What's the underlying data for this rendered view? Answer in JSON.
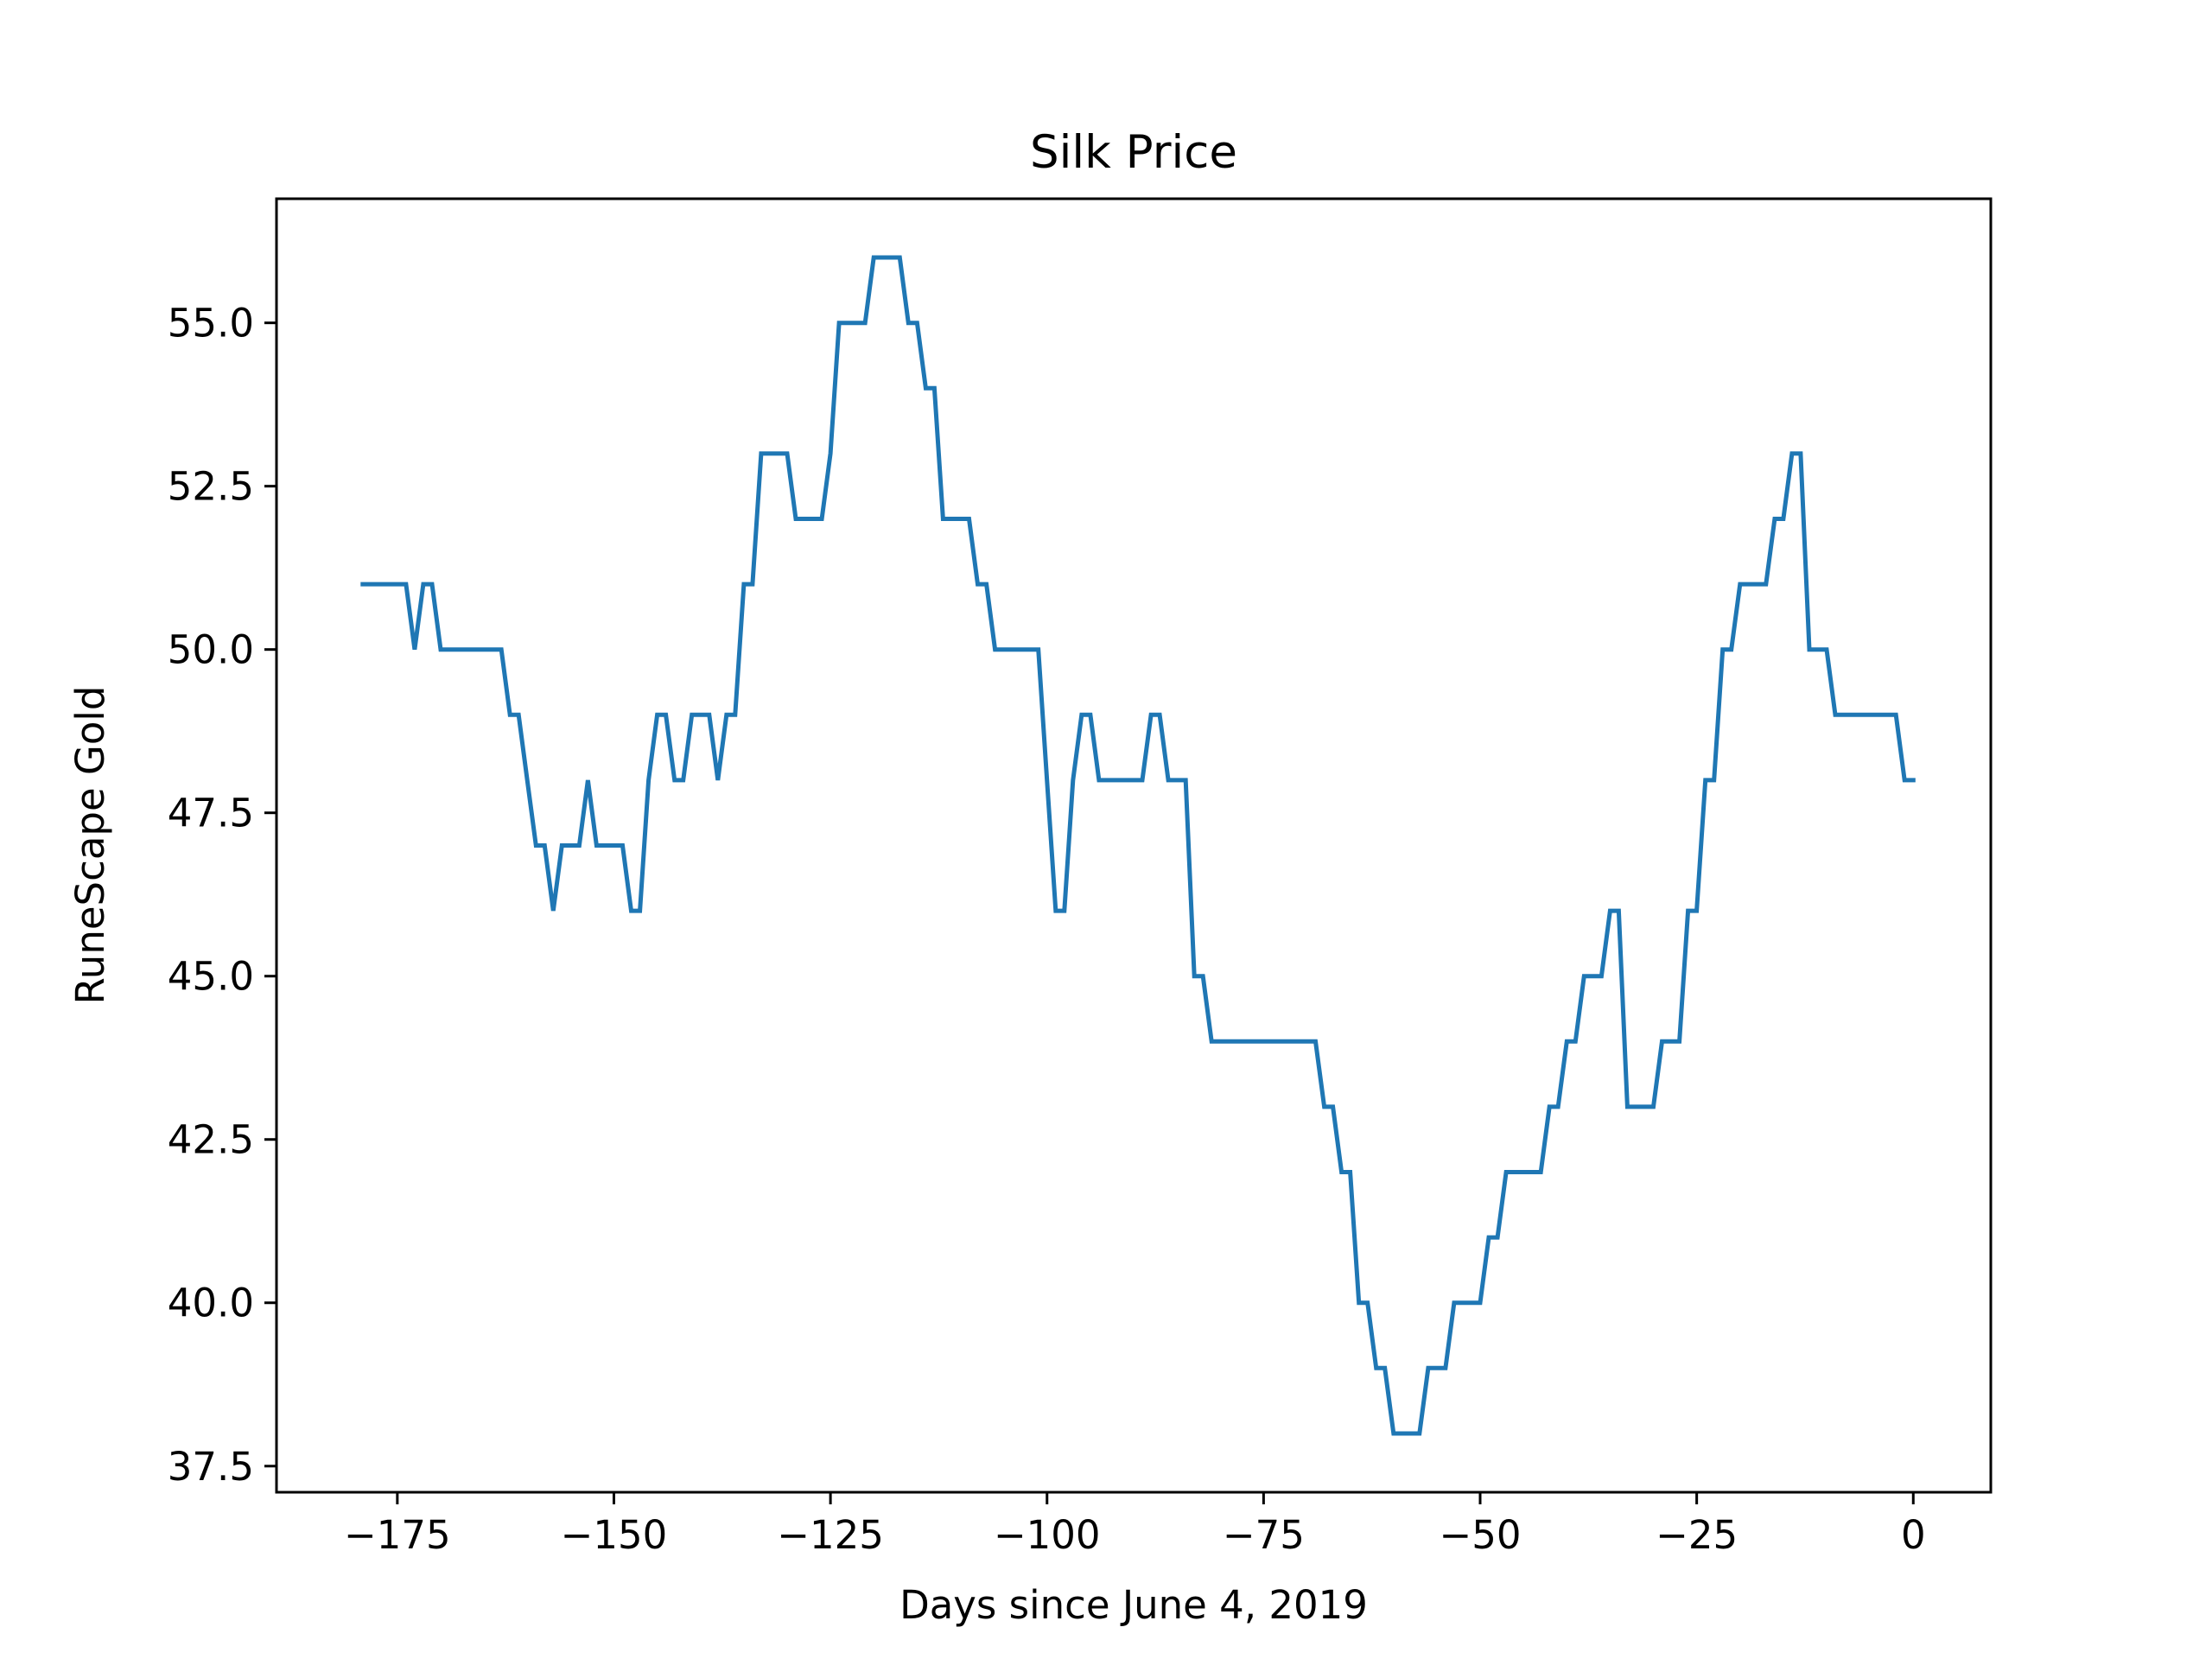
{
  "chart_data": {
    "type": "line",
    "title": "Silk Price",
    "xlabel": "Days since June 4, 2019",
    "ylabel": "RuneScape Gold",
    "xlim": [
      -188.95,
      8.95
    ],
    "ylim": [
      37.1,
      56.9
    ],
    "xticks": [
      -175,
      -150,
      -125,
      -100,
      -75,
      -50,
      -25,
      0
    ],
    "xtick_labels": [
      "−175",
      "−150",
      "−125",
      "−100",
      "−75",
      "−50",
      "−25",
      "0"
    ],
    "yticks": [
      37.5,
      40.0,
      42.5,
      45.0,
      47.5,
      50.0,
      52.5,
      55.0
    ],
    "ytick_labels": [
      "37.5",
      "40.0",
      "42.5",
      "45.0",
      "47.5",
      "50.0",
      "52.5",
      "55.0"
    ],
    "grid": false,
    "line_color": "#1f77b4",
    "series": [
      {
        "x": [
          -179,
          -178,
          -177,
          -176,
          -175,
          -174,
          -173,
          -172,
          -171,
          -170,
          -169,
          -168,
          -167,
          -166,
          -165,
          -164,
          -163,
          -162,
          -161,
          -160,
          -159,
          -158,
          -157,
          -156,
          -155,
          -154,
          -153,
          -152,
          -151,
          -150,
          -149,
          -148,
          -147,
          -146,
          -145,
          -144,
          -143,
          -142,
          -141,
          -140,
          -139,
          -138,
          -137,
          -136,
          -135,
          -134,
          -133,
          -132,
          -131,
          -130,
          -129,
          -128,
          -127,
          -126,
          -125,
          -124,
          -123,
          -122,
          -121,
          -120,
          -119,
          -118,
          -117,
          -116,
          -115,
          -114,
          -113,
          -112,
          -111,
          -110,
          -109,
          -108,
          -107,
          -106,
          -105,
          -104,
          -103,
          -102,
          -101,
          -100,
          -99,
          -98,
          -97,
          -96,
          -95,
          -94,
          -93,
          -92,
          -91,
          -90,
          -89,
          -88,
          -87,
          -86,
          -85,
          -84,
          -83,
          -82,
          -81,
          -80,
          -79,
          -78,
          -77,
          -76,
          -75,
          -74,
          -73,
          -72,
          -71,
          -70,
          -69,
          -68,
          -67,
          -66,
          -65,
          -64,
          -63,
          -62,
          -61,
          -60,
          -59,
          -58,
          -57,
          -56,
          -55,
          -54,
          -53,
          -52,
          -51,
          -50,
          -49,
          -48,
          -47,
          -46,
          -45,
          -44,
          -43,
          -42,
          -41,
          -40,
          -39,
          -38,
          -37,
          -36,
          -35,
          -34,
          -33,
          -32,
          -31,
          -30,
          -29,
          -28,
          -27,
          -26,
          -25,
          -24,
          -23,
          -22,
          -21,
          -20,
          -19,
          -18,
          -17,
          -16,
          -15,
          -14,
          -13,
          -12,
          -11,
          -10,
          -9,
          -8,
          -7,
          -6,
          -5,
          -4,
          -3,
          -2,
          -1,
          0
        ],
        "y": [
          51,
          51,
          51,
          51,
          51,
          51,
          50,
          51,
          51,
          50,
          50,
          50,
          50,
          50,
          50,
          50,
          50,
          49,
          49,
          48,
          47,
          47,
          46,
          47,
          47,
          47,
          48,
          47,
          47,
          47,
          47,
          46,
          46,
          48,
          49,
          49,
          48,
          48,
          49,
          49,
          49,
          48,
          49,
          49,
          51,
          51,
          53,
          53,
          53,
          53,
          52,
          52,
          52,
          52,
          53,
          55,
          55,
          55,
          55,
          56,
          56,
          56,
          56,
          55,
          55,
          54,
          54,
          52,
          52,
          52,
          52,
          51,
          51,
          50,
          50,
          50,
          50,
          50,
          50,
          48,
          46,
          46,
          48,
          49,
          49,
          48,
          48,
          48,
          48,
          48,
          48,
          49,
          49,
          48,
          48,
          48,
          45,
          45,
          44,
          44,
          44,
          44,
          44,
          44,
          44,
          44,
          44,
          44,
          44,
          44,
          44,
          43,
          43,
          42,
          42,
          40,
          40,
          39,
          39,
          38,
          38,
          38,
          38,
          39,
          39,
          39,
          40,
          40,
          40,
          40,
          41,
          41,
          42,
          42,
          42,
          42,
          42,
          43,
          43,
          44,
          44,
          45,
          45,
          45,
          46,
          46,
          43,
          43,
          43,
          43,
          44,
          44,
          44,
          46,
          46,
          48,
          48,
          50,
          50,
          51,
          51,
          51,
          51,
          52,
          52,
          53,
          53,
          50,
          50,
          50,
          49,
          49,
          49,
          49,
          49,
          49,
          49,
          49,
          48,
          48
        ]
      }
    ]
  }
}
